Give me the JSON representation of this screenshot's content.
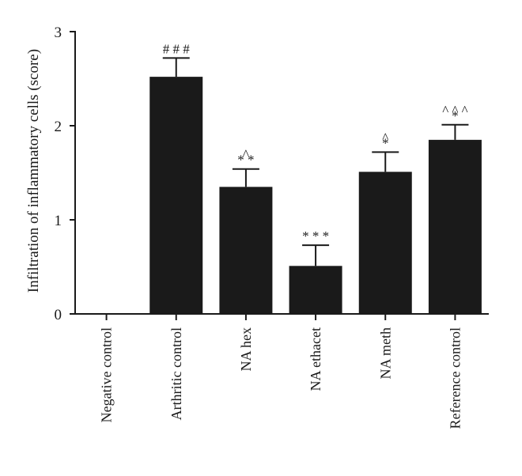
{
  "chart_data": {
    "type": "bar",
    "title": "",
    "xlabel": "",
    "ylabel": "Infiltration of inflammatory cells (score)",
    "ylim": [
      0,
      3
    ],
    "yticks": [
      0,
      1,
      2,
      3
    ],
    "categories": [
      "Negative control",
      "Arthritic control",
      "NA hex",
      "NA ethacet",
      "NA meth",
      "Reference control"
    ],
    "values": [
      0,
      2.52,
      1.35,
      0.51,
      1.51,
      1.85
    ],
    "errors": [
      0,
      0.2,
      0.19,
      0.22,
      0.21,
      0.16
    ],
    "significance": [
      [],
      [
        "###"
      ],
      [
        "**",
        "^"
      ],
      [
        "***"
      ],
      [
        "*",
        "^"
      ],
      [
        "*",
        "^^^"
      ]
    ],
    "bar_color": "#1a1a1a",
    "grid": false,
    "legend": "none"
  }
}
